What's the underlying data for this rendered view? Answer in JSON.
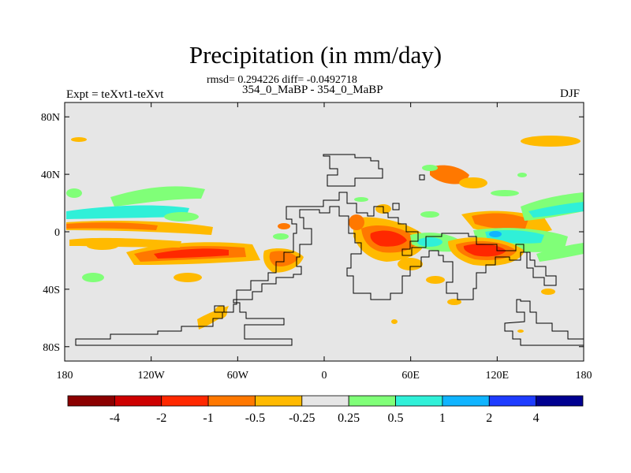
{
  "title": "Precipitation (in mm/day)",
  "stats": "rmsd= 0.294226 diff= -0.0492718",
  "experiment": "Expt = teXvt1-teXvt",
  "case": "354_0_MaBP - 354_0_MaBP",
  "season": "DJF",
  "map": {
    "type": "contour-map",
    "projection": "cylindrical-equidistant",
    "lon_range": [
      -180,
      180
    ],
    "lat_range": [
      -90,
      90
    ],
    "background_color": "#e6e6e6",
    "coastline_color": "#000000",
    "lat_ticks": [
      {
        "value": 80,
        "label": "80N"
      },
      {
        "value": 40,
        "label": "40N"
      },
      {
        "value": 0,
        "label": "0"
      },
      {
        "value": -40,
        "label": "40S"
      },
      {
        "value": -80,
        "label": "80S"
      }
    ],
    "lon_ticks": [
      {
        "value": -180,
        "label": "180"
      },
      {
        "value": -120,
        "label": "120W"
      },
      {
        "value": -60,
        "label": "60W"
      },
      {
        "value": 0,
        "label": "0"
      },
      {
        "value": 60,
        "label": "60E"
      },
      {
        "value": 120,
        "label": "120E"
      },
      {
        "value": 180,
        "label": "180"
      }
    ]
  },
  "colorbar": {
    "colors": [
      "#8b0000",
      "#cd0000",
      "#ff2800",
      "#ff7800",
      "#ffba00",
      "#e6e6e6",
      "#80ff78",
      "#30f0d8",
      "#10b4ff",
      "#1e3cff",
      "#000090"
    ],
    "labels": [
      "-4",
      "-2",
      "-1",
      "-0.5",
      "-0.25",
      "0.25",
      "0.5",
      "1",
      "2",
      "4"
    ]
  },
  "colors": {
    "land_line": "#000000",
    "axis": "#000000",
    "neutral": "#e6e6e6"
  }
}
